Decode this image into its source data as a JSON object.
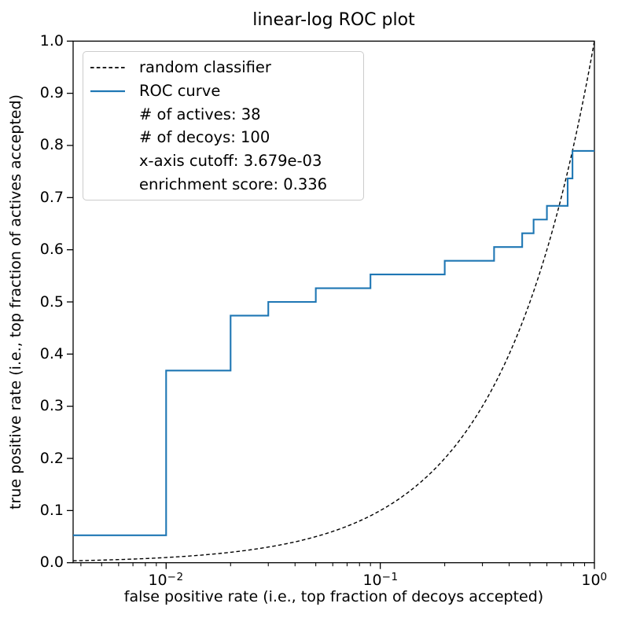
{
  "figure": {
    "title": "linear-log ROC plot",
    "xlabel": "false positive rate (i.e., top fraction of decoys accepted)",
    "ylabel": "true positive rate (i.e., top fraction of actives accepted)"
  },
  "legend": {
    "position": "upper left",
    "items": [
      {
        "label": "random classifier",
        "handle": "dashed-black-line"
      },
      {
        "label": "ROC curve",
        "handle": "solid-blue-line"
      },
      {
        "label": "# of actives: 38",
        "handle": "none"
      },
      {
        "label": "# of decoys: 100",
        "handle": "none"
      },
      {
        "label": "x-axis cutoff: 3.679e-03",
        "handle": "none"
      },
      {
        "label": "enrichment score: 0.336",
        "handle": "none"
      }
    ]
  },
  "colors": {
    "roc_curve": "#1f77b4",
    "random_classifier": "#000000",
    "legend_border": "#cccccc",
    "axes": "#000000",
    "background": "#ffffff"
  },
  "chart_data": {
    "type": "line",
    "title": "linear-log ROC plot",
    "xlabel": "false positive rate (i.e., top fraction of decoys accepted)",
    "ylabel": "true positive rate (i.e., top fraction of actives accepted)",
    "x_scale": "log",
    "y_scale": "linear",
    "xlim": [
      0.003679,
      1.0
    ],
    "ylim": [
      0.0,
      1.0
    ],
    "grid": false,
    "legend_position": "upper left",
    "x_major_ticks": [
      0.01,
      0.1,
      1.0
    ],
    "x_tick_labels": [
      {
        "base": "10",
        "exp": "−2"
      },
      {
        "base": "10",
        "exp": "−1"
      },
      {
        "base": "10",
        "exp": "0"
      }
    ],
    "y_ticks": [
      0.0,
      0.1,
      0.2,
      0.3,
      0.4,
      0.5,
      0.6,
      0.7,
      0.8,
      0.9,
      1.0
    ],
    "y_tick_labels": [
      "0.0",
      "0.1",
      "0.2",
      "0.3",
      "0.4",
      "0.5",
      "0.6",
      "0.7",
      "0.8",
      "0.9",
      "1.0"
    ],
    "series": [
      {
        "name": "random classifier",
        "style": "dashed",
        "color": "#000000",
        "definition": "identity line y = x"
      },
      {
        "name": "ROC curve",
        "style": "solid",
        "color": "#1f77b4",
        "points": [
          [
            0.003679,
            0.0526
          ],
          [
            0.01,
            0.0526
          ],
          [
            0.01,
            0.3684
          ],
          [
            0.02,
            0.3684
          ],
          [
            0.02,
            0.4737
          ],
          [
            0.03,
            0.4737
          ],
          [
            0.03,
            0.5
          ],
          [
            0.05,
            0.5
          ],
          [
            0.05,
            0.5263
          ],
          [
            0.09,
            0.5263
          ],
          [
            0.09,
            0.5526
          ],
          [
            0.2,
            0.5526
          ],
          [
            0.2,
            0.5789
          ],
          [
            0.34,
            0.5789
          ],
          [
            0.34,
            0.6053
          ],
          [
            0.46,
            0.6053
          ],
          [
            0.46,
            0.6316
          ],
          [
            0.52,
            0.6316
          ],
          [
            0.52,
            0.6579
          ],
          [
            0.6,
            0.6579
          ],
          [
            0.6,
            0.6842
          ],
          [
            0.75,
            0.6842
          ],
          [
            0.75,
            0.7368
          ],
          [
            0.79,
            0.7368
          ],
          [
            0.79,
            0.7895
          ],
          [
            1.0,
            0.7895
          ]
        ]
      }
    ],
    "annotations": {
      "n_actives": 38,
      "n_decoys": 100,
      "x_axis_cutoff": "3.679e-03",
      "enrichment_score": 0.336
    }
  }
}
